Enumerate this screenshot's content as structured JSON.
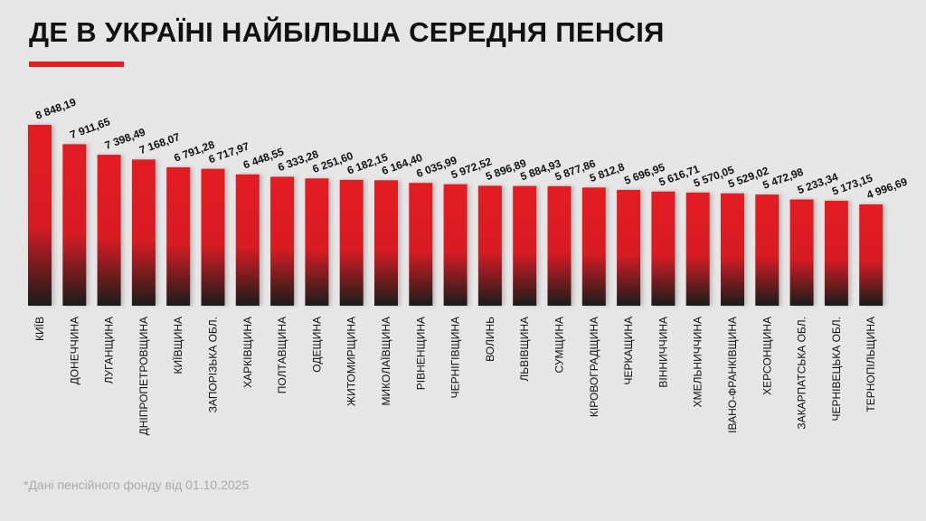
{
  "title": "ДЕ В УКРАЇНІ НАЙБІЛЬША СЕРЕДНЯ ПЕНСІЯ",
  "footnote": "*Дані пенсійного фонду від 01.10.2025",
  "colors": {
    "bar_top": "#e31e24",
    "bar_bottom": "#1a1a1a",
    "accent": "#e31e24"
  },
  "chart_data": {
    "type": "bar",
    "title": "ДЕ В УКРАЇНІ НАЙБІЛЬША СЕРЕДНЯ ПЕНСІЯ",
    "xlabel": "",
    "ylabel": "",
    "ylim": [
      0,
      8848.19
    ],
    "categories": [
      "КИЇВ",
      "ДОНЕЧЧИНА",
      "ЛУГАНЩИНА",
      "ДНІПРОПЕТРОВЩИНА",
      "КИЇВЩИНА",
      "ЗАПОРІЗЬКА ОБЛ.",
      "ХАРКІВЩИНА",
      "ПОЛТАВЩИНА",
      "ОДЕЩИНА",
      "ЖИТОМИРЩИНА",
      "МИКОЛАЇВЩИНА",
      "РІВНЕНЩИНА",
      "ЧЕРНІГІВЩИНА",
      "ВОЛИНЬ",
      "ЛЬВІВЩИНА",
      "СУМЩИНА",
      "КІРОВОГРАДЩИНА",
      "ЧЕРКАЩИНА",
      "ВІННИЧЧИНА",
      "ХМЕЛЬНИЧЧИНА",
      "ІВАНО-ФРАНКІВЩИНА",
      "ХЕРСОНЩИНА",
      "ЗАКАРПАТСЬКА ОБЛ.",
      "ЧЕРНІВЕЦЬКА ОБЛ.",
      "ТЕРНОПІЛЬЩИНА"
    ],
    "values": [
      8848.19,
      7911.65,
      7398.49,
      7168.07,
      6791.28,
      6717.97,
      6448.55,
      6333.28,
      6251.6,
      6182.15,
      6164.4,
      6035.99,
      5972.52,
      5896.89,
      5884.93,
      5877.86,
      5812.8,
      5696.95,
      5616.71,
      5570.05,
      5529.02,
      5472.98,
      5233.34,
      5173.15,
      4996.69
    ],
    "value_labels": [
      "8 848,19",
      "7 911,65",
      "7 398,49",
      "7 168,07",
      "6 791,28",
      "6 717,97",
      "6 448,55",
      "6 333,28",
      "6 251,60",
      "6 182,15",
      "6 164,40",
      "6 035,99",
      "5 972,52",
      "5 896,89",
      "5 884,93",
      "5 877,86",
      "5 812,8",
      "5 696,95",
      "5 616,71",
      "5 570,05",
      "5 529,02",
      "5 472,98",
      "5 233,34",
      "5 173,15",
      "4 996,69"
    ],
    "grid": false,
    "legend": "none"
  }
}
